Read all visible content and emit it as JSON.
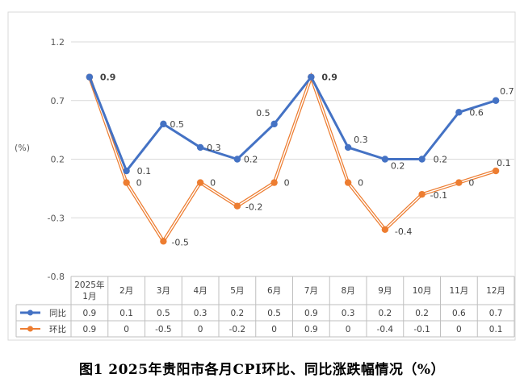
{
  "chart_data": {
    "type": "line",
    "title": "",
    "ylabel": "(%)",
    "xlabel": "",
    "ylim": [
      -0.8,
      1.2
    ],
    "yticks": [
      "1.2",
      "0.7",
      "0.2",
      "-0.3",
      "-0.8"
    ],
    "ytick_values": [
      1.2,
      0.7,
      0.2,
      -0.3,
      -0.8
    ],
    "categories": [
      "2025年\n1月",
      "2月",
      "3月",
      "4月",
      "5月",
      "6月",
      "7月",
      "8月",
      "9月",
      "10月",
      "11月",
      "12月"
    ],
    "series": [
      {
        "name": "同比",
        "color": "#4472C4",
        "values": [
          0.9,
          0.1,
          0.5,
          0.3,
          0.2,
          0.5,
          0.9,
          0.3,
          0.2,
          0.2,
          0.6,
          0.7
        ],
        "labels": [
          "0.9",
          "0.1",
          "0.5",
          "0.3",
          "0.2",
          "0.5",
          "0.9",
          "0.3",
          "0.2",
          "0.2",
          "0.6",
          "0.7"
        ]
      },
      {
        "name": "环比",
        "color": "#ED7D31",
        "values": [
          0.9,
          0,
          -0.5,
          0,
          -0.2,
          0,
          0.9,
          0,
          -0.4,
          -0.1,
          0,
          0.1
        ],
        "labels": [
          "0.9",
          "0",
          "-0.5",
          "0",
          "-0.2",
          "0",
          "0.9",
          "0",
          "-0.4",
          "-0.1",
          "0",
          "0.1"
        ]
      }
    ],
    "grid": true,
    "legend": "data-table"
  },
  "caption": "图1 2025年贵阳市各月CPI环比、同比涨跌幅情况（%）"
}
